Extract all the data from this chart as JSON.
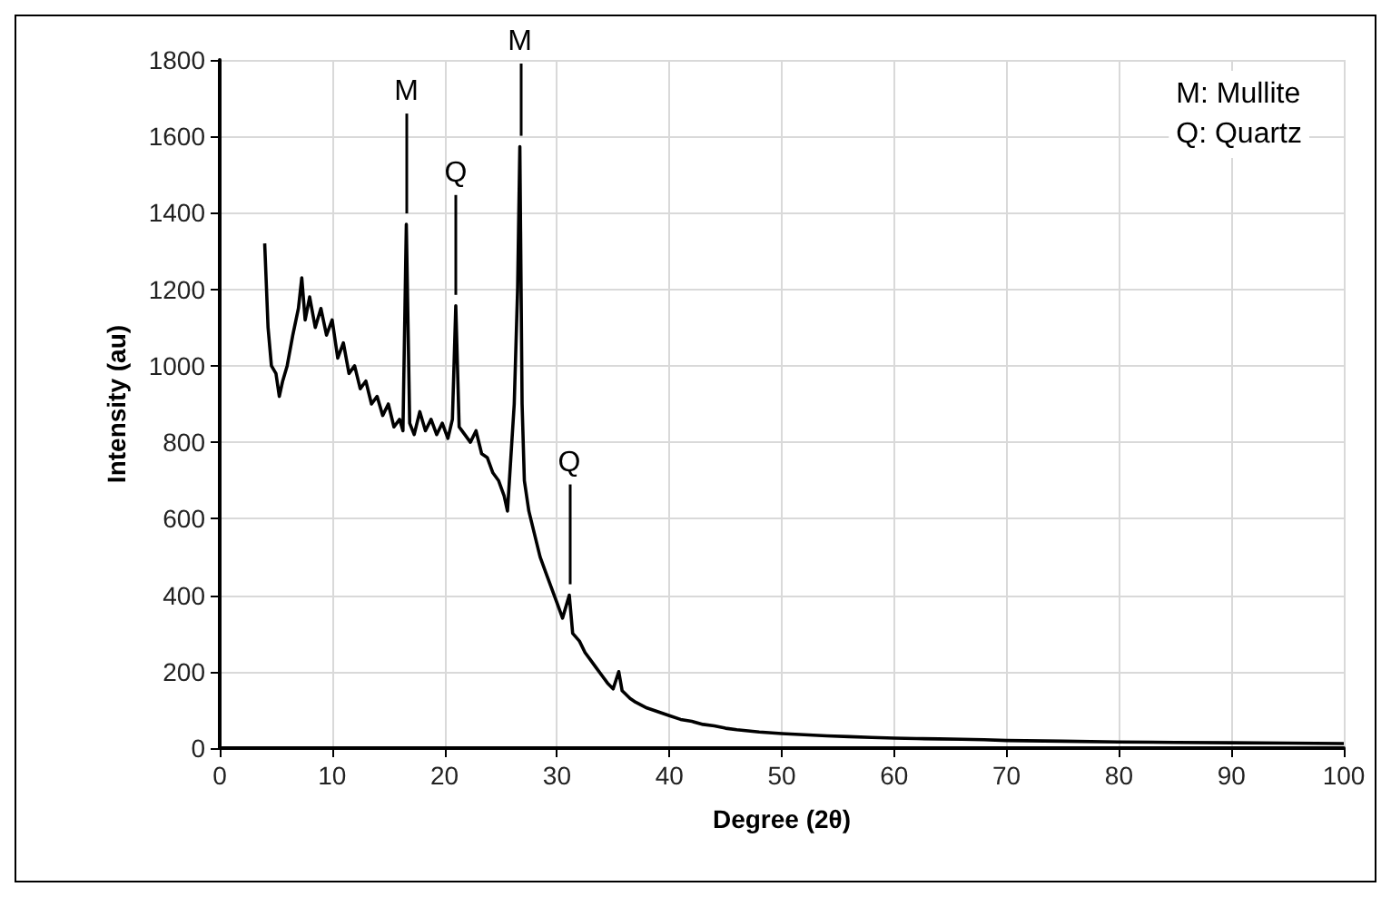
{
  "chart_data": {
    "type": "line",
    "xlabel": "Degree (2θ)",
    "ylabel": "Intensity (au)",
    "x": [
      4,
      4.3,
      4.6,
      5,
      5.3,
      5.6,
      6,
      6.5,
      7,
      7.3,
      7.6,
      8,
      8.5,
      9,
      9.5,
      10,
      10.5,
      11,
      11.5,
      12,
      12.5,
      13,
      13.5,
      14,
      14.5,
      15,
      15.5,
      16,
      16.3,
      16.6,
      16.9,
      17.3,
      17.8,
      18.3,
      18.8,
      19.3,
      19.8,
      20.3,
      20.7,
      21,
      21.3,
      21.8,
      22.3,
      22.8,
      23.3,
      23.8,
      24.3,
      24.8,
      25.3,
      25.6,
      25.9,
      26.2,
      26.5,
      26.7,
      26.9,
      27.1,
      27.5,
      28,
      28.5,
      29,
      29.5,
      30,
      30.5,
      31.1,
      31.4,
      32,
      32.5,
      33,
      33.5,
      34,
      34.5,
      35,
      35.5,
      35.8,
      36.5,
      37,
      38,
      39,
      40,
      41,
      42,
      43,
      44,
      45,
      46,
      47,
      48,
      50,
      52,
      54,
      56,
      58,
      60,
      62,
      64,
      66,
      68,
      70,
      75,
      80,
      85,
      90,
      95,
      100
    ],
    "series": [
      {
        "color": "#000000",
        "values": [
          1320,
          1100,
          1000,
          980,
          920,
          960,
          1000,
          1080,
          1150,
          1230,
          1120,
          1180,
          1100,
          1150,
          1080,
          1120,
          1020,
          1060,
          980,
          1000,
          940,
          960,
          900,
          920,
          870,
          900,
          840,
          860,
          830,
          1370,
          850,
          820,
          880,
          830,
          860,
          820,
          850,
          810,
          860,
          1157,
          840,
          820,
          800,
          830,
          770,
          760,
          720,
          700,
          660,
          620,
          760,
          900,
          1200,
          1573,
          900,
          700,
          620,
          560,
          500,
          460,
          420,
          380,
          340,
          400,
          300,
          280,
          250,
          230,
          210,
          190,
          170,
          155,
          200,
          150,
          130,
          120,
          105,
          95,
          85,
          75,
          70,
          62,
          58,
          52,
          48,
          45,
          42,
          38,
          35,
          32,
          30,
          28,
          26,
          25,
          24,
          23,
          22,
          20,
          18,
          16,
          15,
          14,
          13,
          12
        ]
      }
    ],
    "xlim": [
      0,
      100
    ],
    "xticks": [
      0,
      10,
      20,
      30,
      40,
      50,
      60,
      70,
      80,
      90,
      100
    ],
    "ylim": [
      0,
      1800
    ],
    "yticks": [
      0,
      200,
      400,
      600,
      800,
      1000,
      1200,
      1400,
      1600,
      1800
    ],
    "grid": true,
    "marker": "none",
    "line_style": "solid",
    "annotations": [
      {
        "text": "M",
        "x": 16.6,
        "y": 1370
      },
      {
        "text": "Q",
        "x": 21,
        "y": 1157
      },
      {
        "text": "M",
        "x": 26.7,
        "y": 1573
      },
      {
        "text": "Q",
        "x": 31.1,
        "y": 400
      },
      "M: Mullite\nQ: Quartz"
    ]
  }
}
